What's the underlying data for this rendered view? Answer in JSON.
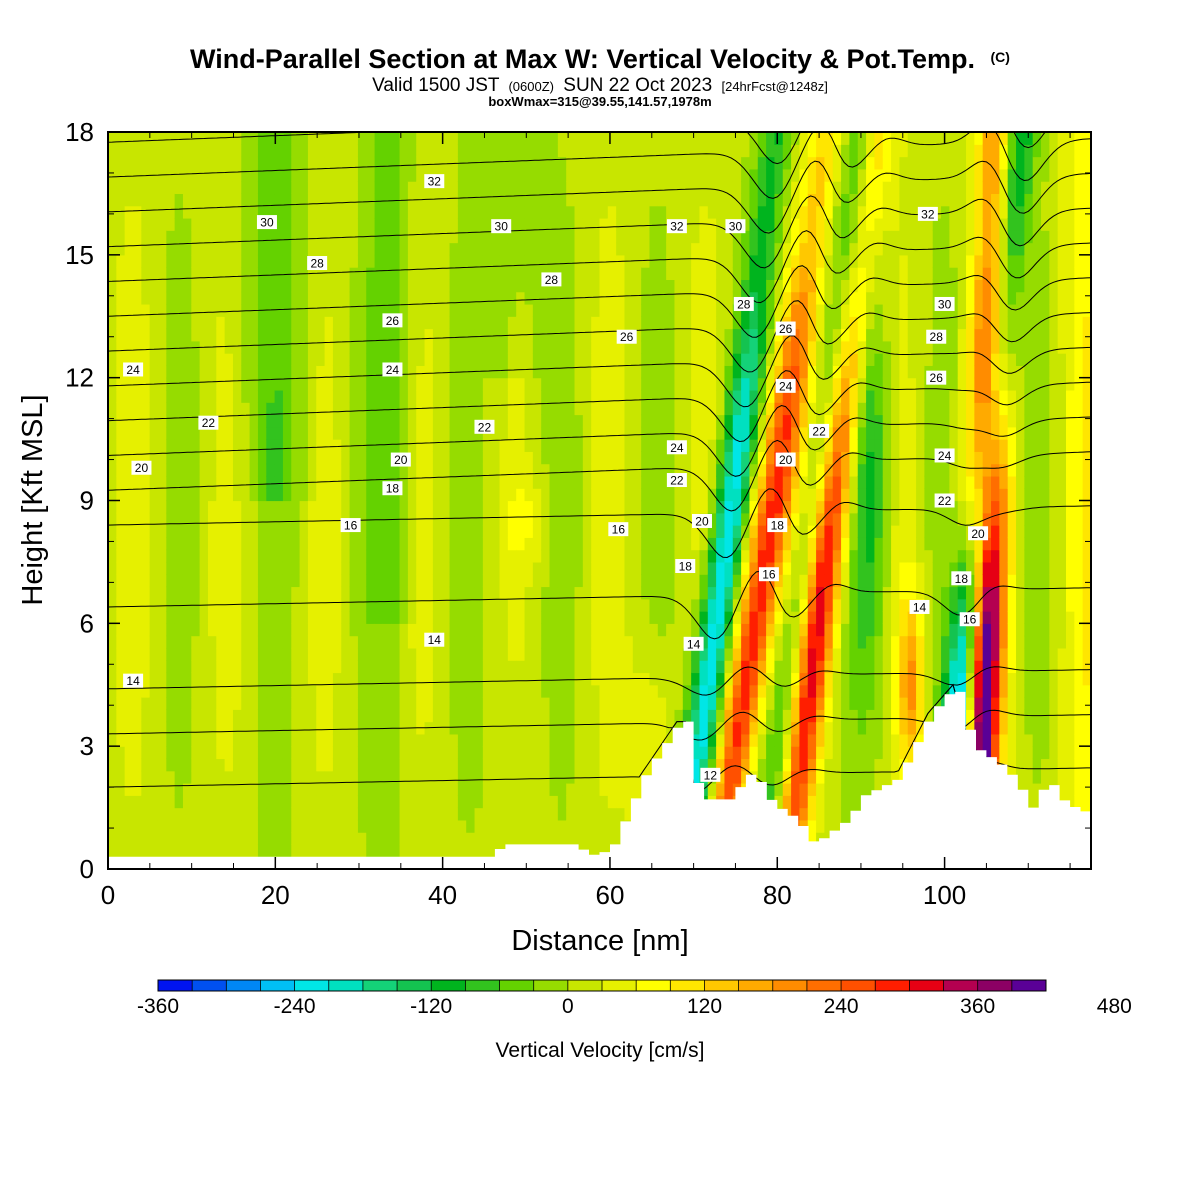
{
  "title": {
    "main": "Wind-Parallel Section at Max W: Vertical Velocity & Pot.Temp.",
    "copyright": "(C)",
    "valid_a": "Valid 1500 JST",
    "valid_b": "(0600Z)",
    "valid_c": "SUN 22 Oct 2023",
    "valid_d": "[24hrFcst@1248z]",
    "box": "boxWmax=315@39.55,141.57,1978m"
  },
  "chart_data": {
    "type": "heatmap",
    "xlabel": "Distance [nm]",
    "ylabel": "Height [Kft MSL]",
    "xlim": [
      0,
      117.5
    ],
    "ylim": [
      0,
      18
    ],
    "x_ticks": [
      0,
      20,
      40,
      60,
      80,
      100
    ],
    "y_ticks": [
      0,
      3,
      6,
      9,
      12,
      15,
      18
    ],
    "field": "Vertical Velocity",
    "contour_field": "Potential Temperature",
    "colorbar": {
      "title": "Vertical Velocity [cm/s]",
      "levels": [
        -360,
        -330,
        -300,
        -270,
        -240,
        -210,
        -180,
        -150,
        -120,
        -90,
        -60,
        -30,
        0,
        30,
        60,
        90,
        120,
        150,
        180,
        210,
        240,
        270,
        300,
        330,
        360,
        390,
        420,
        450,
        480,
        510
      ],
      "tick_labels": [
        "-360",
        "-240",
        "-120",
        "0",
        "120",
        "240",
        "360",
        "480"
      ],
      "colors": [
        "#0014f0",
        "#0050f0",
        "#0087f5",
        "#00bff5",
        "#00e6e6",
        "#00e0c0",
        "#14d278",
        "#14c350",
        "#00b41e",
        "#32c31e",
        "#64d200",
        "#96dc00",
        "#c8e600",
        "#e6f000",
        "#ffff00",
        "#ffe600",
        "#ffc800",
        "#ffaa00",
        "#ff8c00",
        "#ff6e00",
        "#ff5000",
        "#ff1e00",
        "#e60014",
        "#b40050",
        "#8c0064",
        "#5a0096"
      ]
    },
    "terrain_kft": [
      [
        0,
        0.3
      ],
      [
        40,
        0.3
      ],
      [
        45,
        0.3
      ],
      [
        47,
        0.6
      ],
      [
        55,
        0.6
      ],
      [
        58,
        0.3
      ],
      [
        60,
        0.6
      ],
      [
        62,
        1.5
      ],
      [
        64,
        2.4
      ],
      [
        66,
        3.0
      ],
      [
        68,
        3.6
      ],
      [
        69,
        3.6
      ],
      [
        70,
        2.1
      ],
      [
        71,
        1.7
      ],
      [
        74,
        1.7
      ],
      [
        76,
        2.3
      ],
      [
        77,
        2.3
      ],
      [
        79,
        1.6
      ],
      [
        82,
        1.2
      ],
      [
        84,
        0.6
      ],
      [
        88,
        1.2
      ],
      [
        90,
        1.8
      ],
      [
        94,
        2.2
      ],
      [
        98,
        3.8
      ],
      [
        101,
        4.5
      ],
      [
        102,
        3.8
      ],
      [
        103,
        3.0
      ],
      [
        106,
        2.6
      ],
      [
        108,
        2.2
      ],
      [
        110,
        1.5
      ],
      [
        112,
        2.2
      ],
      [
        114,
        1.6
      ],
      [
        117.5,
        1.3
      ]
    ],
    "updraft_bands": [
      {
        "x_base": 73,
        "x_top": 86,
        "max_w": 300
      },
      {
        "x_base": 81,
        "x_top": 92,
        "max_w": 330
      },
      {
        "x_base": 104,
        "x_top": 106,
        "max_w": 480
      }
    ],
    "downdraft_bands": [
      {
        "x_base": 69,
        "x_top": 80,
        "min_w": -270
      },
      {
        "x_base": 79,
        "x_top": 90,
        "min_w": -150
      },
      {
        "x_base": 100,
        "x_top": 109,
        "min_w": -360
      }
    ],
    "contour_labels": [
      {
        "value": "32",
        "x": 39,
        "y": 16.8
      },
      {
        "value": "30",
        "x": 19,
        "y": 15.8
      },
      {
        "value": "30",
        "x": 47,
        "y": 15.7
      },
      {
        "value": "28",
        "x": 25,
        "y": 14.8
      },
      {
        "value": "28",
        "x": 53,
        "y": 14.4
      },
      {
        "value": "26",
        "x": 34,
        "y": 13.4
      },
      {
        "value": "24",
        "x": 3,
        "y": 12.2
      },
      {
        "value": "24",
        "x": 34,
        "y": 12.2
      },
      {
        "value": "22",
        "x": 12,
        "y": 10.9
      },
      {
        "value": "22",
        "x": 45,
        "y": 10.8
      },
      {
        "value": "20",
        "x": 4,
        "y": 9.8
      },
      {
        "value": "20",
        "x": 35,
        "y": 10.0
      },
      {
        "value": "18",
        "x": 34,
        "y": 9.3
      },
      {
        "value": "16",
        "x": 29,
        "y": 8.4
      },
      {
        "value": "16",
        "x": 61,
        "y": 8.3
      },
      {
        "value": "14",
        "x": 3,
        "y": 4.6
      },
      {
        "value": "14",
        "x": 39,
        "y": 5.6
      },
      {
        "value": "14",
        "x": 70,
        "y": 5.5
      },
      {
        "value": "14",
        "x": 97,
        "y": 6.4
      },
      {
        "value": "12",
        "x": 72,
        "y": 2.3
      },
      {
        "value": "32",
        "x": 68,
        "y": 15.7
      },
      {
        "value": "30",
        "x": 75,
        "y": 15.7
      },
      {
        "value": "26",
        "x": 62,
        "y": 13.0
      },
      {
        "value": "28",
        "x": 76,
        "y": 13.8
      },
      {
        "value": "26",
        "x": 81,
        "y": 13.2
      },
      {
        "value": "24",
        "x": 81,
        "y": 11.8
      },
      {
        "value": "22",
        "x": 85,
        "y": 10.7
      },
      {
        "value": "20",
        "x": 81,
        "y": 10.0
      },
      {
        "value": "18",
        "x": 80,
        "y": 8.4
      },
      {
        "value": "16",
        "x": 79,
        "y": 7.2
      },
      {
        "value": "24",
        "x": 68,
        "y": 10.3
      },
      {
        "value": "22",
        "x": 68,
        "y": 9.5
      },
      {
        "value": "20",
        "x": 71,
        "y": 8.5
      },
      {
        "value": "18",
        "x": 69,
        "y": 7.4
      },
      {
        "value": "32",
        "x": 98,
        "y": 16.0
      },
      {
        "value": "30",
        "x": 100,
        "y": 13.8
      },
      {
        "value": "28",
        "x": 99,
        "y": 13.0
      },
      {
        "value": "26",
        "x": 99,
        "y": 12.0
      },
      {
        "value": "24",
        "x": 100,
        "y": 10.1
      },
      {
        "value": "22",
        "x": 100,
        "y": 9.0
      },
      {
        "value": "20",
        "x": 104,
        "y": 8.2
      },
      {
        "value": "18",
        "x": 102,
        "y": 7.1
      },
      {
        "value": "16",
        "x": 103,
        "y": 6.1
      }
    ]
  }
}
